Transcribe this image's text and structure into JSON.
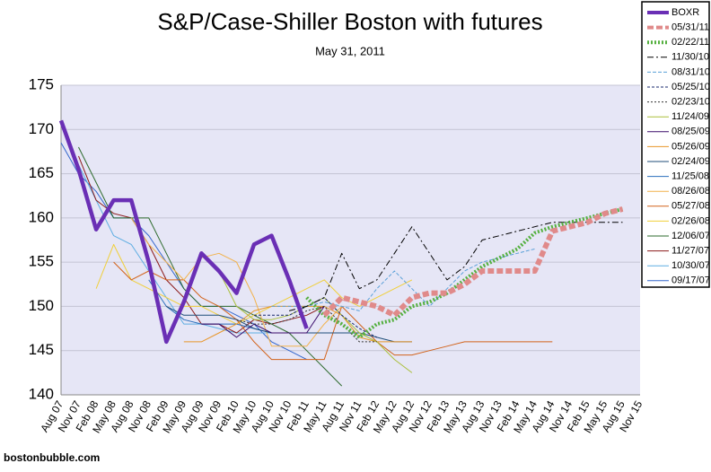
{
  "chart_data": {
    "type": "line",
    "title": "S&P/Case-Shiller Boston with futures",
    "subtitle": "May 31, 2011",
    "source": "bostonbubble.com",
    "categories": [
      "Aug 07",
      "Nov 07",
      "Feb 08",
      "May 08",
      "Aug 08",
      "Nov 08",
      "Feb 09",
      "May 09",
      "Aug 09",
      "Nov 09",
      "Feb 10",
      "May 10",
      "Aug 10",
      "Nov 10",
      "Feb 11",
      "May 11",
      "Aug 11",
      "Nov 11",
      "Feb 12",
      "May 12",
      "Aug 12",
      "Nov 12",
      "Feb 13",
      "May 13",
      "Aug 13",
      "Nov 13",
      "Feb 14",
      "May 14",
      "Aug 14",
      "Nov 14",
      "Feb 15",
      "May 15",
      "Aug 15",
      "Nov 15"
    ],
    "ylim": [
      140,
      175
    ],
    "yticks": [
      140,
      145,
      150,
      155,
      160,
      165,
      170,
      175
    ],
    "grid": true,
    "legend": "right",
    "series": [
      {
        "name": "BOXR",
        "color": "#6a2fb5",
        "width": 4.5,
        "dash": "none",
        "values": [
          171,
          165.5,
          158.7,
          162,
          162,
          155,
          146,
          150.5,
          156,
          154,
          151.5,
          157,
          158,
          153,
          147.5,
          null,
          null,
          null,
          null,
          null,
          null,
          null,
          null,
          null,
          null,
          null,
          null,
          null,
          null,
          null,
          null,
          null,
          null,
          null
        ]
      },
      {
        "name": "05/31/11",
        "color": "#e08a8a",
        "width": 6,
        "dash": "7,3",
        "values": [
          null,
          null,
          null,
          null,
          null,
          null,
          null,
          null,
          null,
          null,
          null,
          null,
          null,
          null,
          null,
          149,
          151,
          150.5,
          150,
          149,
          151,
          151.5,
          151.5,
          152.5,
          154,
          154,
          154,
          154,
          158.5,
          159,
          159.5,
          160.5,
          161,
          null
        ]
      },
      {
        "name": "02/22/11",
        "color": "#55b040",
        "width": 4,
        "dash": "2,2",
        "values": [
          null,
          null,
          null,
          null,
          null,
          null,
          null,
          null,
          null,
          null,
          null,
          null,
          null,
          null,
          151,
          149,
          148,
          146.5,
          148,
          148.5,
          150,
          150.5,
          151.5,
          153,
          154.5,
          155.5,
          156.5,
          158.3,
          159,
          159.5,
          160,
          160.5,
          161,
          null
        ]
      },
      {
        "name": "11/30/10",
        "color": "#000000",
        "width": 1,
        "dash": "7,3,2,3",
        "values": [
          null,
          null,
          null,
          null,
          null,
          null,
          null,
          null,
          null,
          null,
          null,
          null,
          null,
          149.5,
          150,
          151,
          156,
          152,
          153,
          156,
          159,
          156,
          153,
          154.5,
          157.5,
          158,
          158.5,
          159,
          159.5,
          159.5,
          159.5,
          159.5,
          159.5,
          null
        ]
      },
      {
        "name": "08/31/10",
        "color": "#5aa0d8",
        "width": 1,
        "dash": "4,2",
        "values": [
          null,
          null,
          null,
          null,
          null,
          null,
          null,
          null,
          null,
          null,
          null,
          null,
          150,
          150,
          150,
          150.5,
          150,
          149.5,
          152,
          154,
          152,
          150,
          152,
          154,
          155,
          155.5,
          156,
          156.5,
          null,
          null,
          null,
          null,
          null,
          null
        ]
      },
      {
        "name": "05/25/10",
        "color": "#1a2a6c",
        "width": 1,
        "dash": "3,2",
        "values": [
          null,
          null,
          null,
          null,
          null,
          null,
          null,
          null,
          null,
          null,
          null,
          149,
          149,
          149,
          150,
          151,
          149,
          147.5,
          146.5,
          null,
          null,
          null,
          null,
          null,
          null,
          null,
          null,
          null,
          null,
          null,
          null,
          null,
          null,
          null
        ]
      },
      {
        "name": "02/23/10",
        "color": "#333333",
        "width": 1,
        "dash": "2,2",
        "values": [
          null,
          null,
          null,
          null,
          null,
          null,
          null,
          null,
          null,
          null,
          148.5,
          148,
          148,
          148.5,
          149.5,
          150,
          148,
          146,
          146,
          null,
          null,
          null,
          null,
          null,
          null,
          null,
          null,
          null,
          null,
          null,
          null,
          null,
          null,
          null
        ]
      },
      {
        "name": "11/24/09",
        "color": "#aabf3a",
        "width": 1,
        "dash": "none",
        "values": [
          null,
          null,
          null,
          null,
          null,
          null,
          null,
          null,
          null,
          154,
          150,
          148.5,
          148.5,
          149,
          150,
          151,
          149,
          147,
          146,
          144,
          142.5,
          null,
          null,
          null,
          null,
          null,
          null,
          null,
          null,
          null,
          null,
          null,
          null,
          null
        ]
      },
      {
        "name": "08/25/09",
        "color": "#3a0a6a",
        "width": 1,
        "dash": "none",
        "values": [
          null,
          null,
          null,
          null,
          null,
          null,
          null,
          null,
          148,
          148,
          146.5,
          148,
          147,
          147,
          147,
          150,
          null,
          null,
          null,
          null,
          null,
          null,
          null,
          null,
          null,
          null,
          null,
          null,
          null,
          null,
          null,
          null,
          null,
          null
        ]
      },
      {
        "name": "05/26/09",
        "color": "#e8962a",
        "width": 1,
        "dash": "none",
        "values": [
          null,
          null,
          null,
          null,
          null,
          null,
          null,
          146,
          146,
          147,
          148,
          149.5,
          150,
          150,
          150,
          150,
          149,
          146.5,
          146,
          146,
          146,
          null,
          null,
          null,
          null,
          null,
          null,
          null,
          null,
          null,
          null,
          null,
          null,
          null
        ]
      },
      {
        "name": "02/24/09",
        "color": "#1f4e79",
        "width": 1,
        "dash": "none",
        "values": [
          null,
          null,
          null,
          null,
          null,
          null,
          150,
          149,
          149,
          149,
          148.5,
          147.5,
          147,
          147,
          147,
          147,
          147,
          147,
          146.5,
          146,
          146,
          null,
          null,
          null,
          null,
          null,
          null,
          null,
          null,
          null,
          null,
          null,
          null,
          null
        ]
      },
      {
        "name": "11/25/08",
        "color": "#2a6ebb",
        "width": 1,
        "dash": "none",
        "values": [
          null,
          null,
          null,
          null,
          null,
          153,
          150,
          148.5,
          148,
          148,
          148,
          147.5,
          147,
          147,
          null,
          null,
          null,
          null,
          null,
          null,
          null,
          null,
          null,
          null,
          null,
          null,
          null,
          null,
          null,
          null,
          null,
          null,
          null,
          null
        ]
      },
      {
        "name": "08/26/08",
        "color": "#f2b24c",
        "width": 1,
        "dash": "none",
        "values": [
          null,
          null,
          null,
          null,
          160,
          157,
          155,
          153,
          155.5,
          156,
          155,
          151,
          145.5,
          145.5,
          145.5,
          148,
          150,
          null,
          null,
          null,
          null,
          null,
          null,
          null,
          null,
          null,
          null,
          null,
          null,
          null,
          null,
          null,
          null,
          null
        ]
      },
      {
        "name": "05/27/08",
        "color": "#d2621a",
        "width": 1,
        "dash": "none",
        "values": [
          null,
          null,
          null,
          155,
          153,
          154,
          153,
          153,
          151,
          150,
          148.5,
          146,
          144,
          144,
          144,
          144,
          150,
          148,
          146,
          144.5,
          144.5,
          145,
          145.5,
          146,
          146,
          146,
          146,
          146,
          146,
          null,
          null,
          null,
          null,
          null
        ]
      },
      {
        "name": "02/26/08",
        "color": "#f0cf3a",
        "width": 1,
        "dash": "none",
        "values": [
          null,
          null,
          152,
          157,
          153,
          152,
          151,
          150,
          150,
          149,
          148,
          149,
          150,
          151,
          152,
          153,
          151,
          150,
          151,
          152,
          153,
          null,
          null,
          null,
          null,
          null,
          null,
          null,
          null,
          null,
          null,
          null,
          null,
          null
        ]
      },
      {
        "name": "12/06/07",
        "color": "#2e6b2e",
        "width": 1,
        "dash": "none",
        "values": [
          null,
          168,
          164,
          160,
          160,
          160,
          156,
          152,
          150,
          150,
          150,
          149,
          148,
          147,
          145,
          143,
          141,
          null,
          null,
          null,
          null,
          null,
          null,
          null,
          null,
          null,
          null,
          null,
          null,
          null,
          null,
          null,
          null,
          null
        ]
      },
      {
        "name": "11/27/07",
        "color": "#8b1a1a",
        "width": 1,
        "dash": "none",
        "values": [
          null,
          167,
          162,
          160.5,
          160,
          157,
          153,
          151,
          148,
          148,
          147,
          148.5,
          148,
          148.5,
          149,
          150,
          null,
          null,
          null,
          null,
          null,
          null,
          null,
          null,
          null,
          null,
          null,
          null,
          null,
          null,
          null,
          null,
          null,
          null
        ]
      },
      {
        "name": "10/30/07",
        "color": "#5dade2",
        "width": 1,
        "dash": "none",
        "values": [
          null,
          166,
          162,
          158,
          157,
          154,
          151,
          148,
          148,
          147.5,
          147,
          147,
          147,
          147,
          147,
          147,
          null,
          null,
          null,
          null,
          null,
          null,
          null,
          null,
          null,
          null,
          null,
          null,
          null,
          null,
          null,
          null,
          null,
          null
        ]
      },
      {
        "name": "09/17/07",
        "color": "#3366cc",
        "width": 1,
        "dash": "none",
        "values": [
          168.5,
          165,
          163,
          160,
          160,
          158,
          155,
          152,
          150,
          150,
          149,
          148,
          146,
          145,
          144,
          null,
          null,
          null,
          null,
          null,
          null,
          null,
          null,
          null,
          null,
          null,
          null,
          null,
          null,
          null,
          null,
          null,
          null,
          null
        ]
      }
    ]
  }
}
